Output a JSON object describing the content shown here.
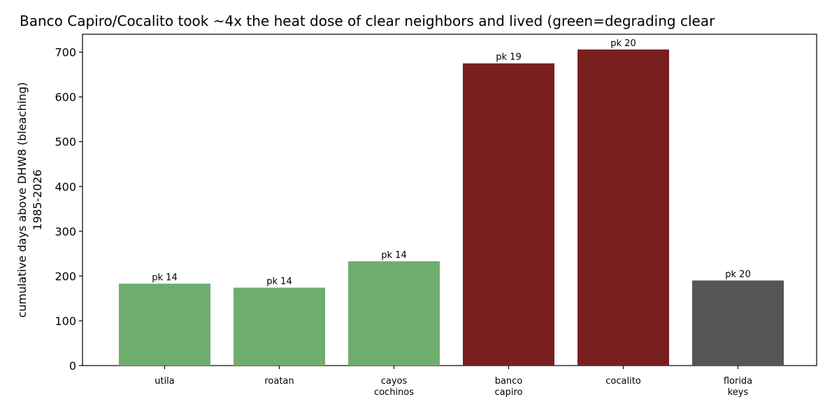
{
  "chart_data": {
    "type": "bar",
    "title": "Banco Capiro/Cocalito took ~4x the heat dose of clear neighbors and lived (green=degrading clear",
    "ylabel_lines": [
      "cumulative days above DHW8 (bleaching)",
      "1985-2026"
    ],
    "xlabel": "",
    "ylim": [
      0,
      740
    ],
    "yticks": [
      0,
      100,
      200,
      300,
      400,
      500,
      600,
      700
    ],
    "grid": false,
    "categories": [
      [
        "utila"
      ],
      [
        "roatan"
      ],
      [
        "cayos",
        "cochinos"
      ],
      [
        "banco",
        "capiro"
      ],
      [
        "cocalito"
      ],
      [
        "florida",
        "keys"
      ]
    ],
    "values": [
      183,
      174,
      233,
      675,
      706,
      190
    ],
    "data_labels": [
      "pk 14",
      "pk 14",
      "pk 14",
      "pk 19",
      "pk 20",
      "pk 20"
    ],
    "colors": [
      "#6fad6f",
      "#6fad6f",
      "#6fad6f",
      "#7a1f1f",
      "#7a1f1f",
      "#555555"
    ]
  }
}
